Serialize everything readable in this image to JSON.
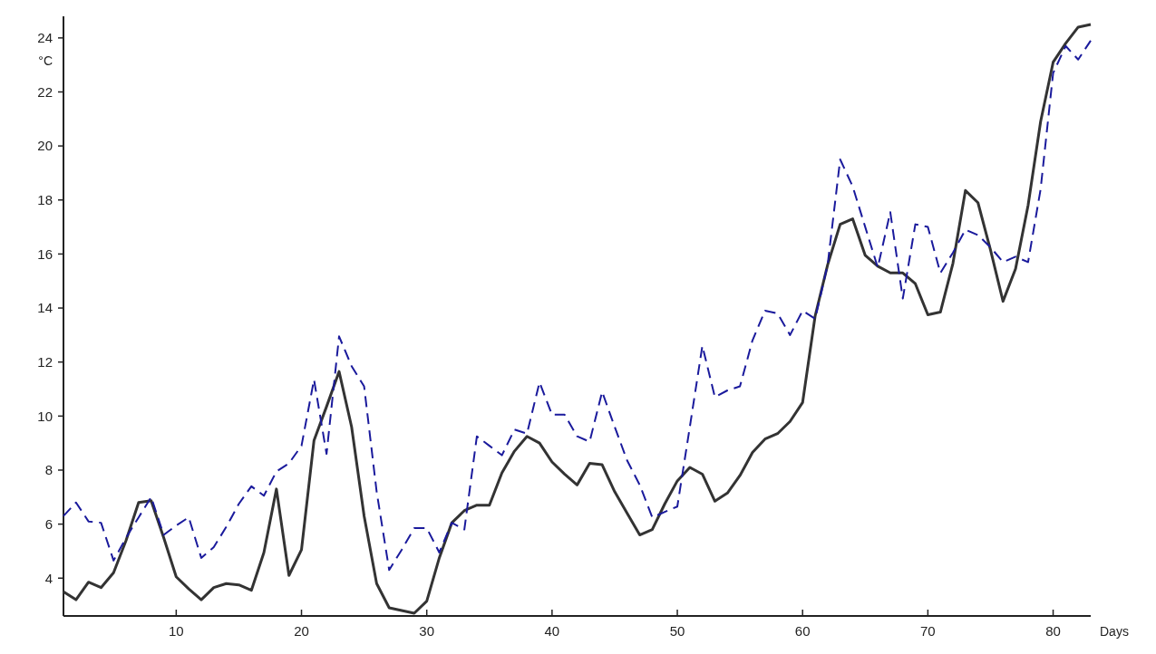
{
  "chart_data": {
    "type": "line",
    "xlabel": "Days",
    "ylabel": "°C",
    "x": [
      1,
      2,
      3,
      4,
      5,
      6,
      7,
      8,
      9,
      10,
      11,
      12,
      13,
      14,
      15,
      16,
      17,
      18,
      19,
      20,
      21,
      22,
      23,
      24,
      25,
      26,
      27,
      28,
      29,
      30,
      31,
      32,
      33,
      34,
      35,
      36,
      37,
      38,
      39,
      40,
      41,
      42,
      43,
      44,
      45,
      46,
      47,
      48,
      49,
      50,
      51,
      52,
      53,
      54,
      55,
      56,
      57,
      58,
      59,
      60,
      61,
      62,
      63,
      64,
      65,
      66,
      67,
      68,
      69,
      70,
      71,
      72,
      73,
      74,
      75,
      76,
      77,
      78,
      79,
      80,
      81,
      82,
      83
    ],
    "series": [
      {
        "color": "#333333",
        "line_style": "solid",
        "values": [
          3.5,
          3.2,
          3.85,
          3.65,
          4.2,
          5.4,
          6.8,
          6.87,
          5.5,
          4.05,
          3.6,
          3.2,
          3.65,
          3.8,
          3.75,
          3.55,
          4.95,
          7.3,
          4.1,
          5.05,
          9.1,
          10.35,
          11.65,
          9.6,
          6.3,
          3.8,
          2.9,
          2.8,
          2.7,
          3.15,
          4.75,
          6.05,
          6.5,
          6.7,
          6.7,
          7.9,
          8.7,
          9.25,
          9.0,
          8.3,
          7.85,
          7.45,
          8.25,
          8.2,
          7.2,
          6.4,
          5.6,
          5.8,
          6.75,
          7.6,
          8.1,
          7.85,
          6.85,
          7.15,
          7.8,
          8.65,
          9.15,
          9.35,
          9.8,
          10.5,
          13.7,
          15.6,
          17.1,
          17.3,
          15.95,
          15.55,
          15.3,
          15.3,
          14.9,
          13.75,
          13.85,
          15.65,
          18.35,
          17.9,
          16.15,
          14.25,
          15.45,
          17.8,
          20.9,
          23.1,
          23.8,
          24.4,
          24.5
        ]
      },
      {
        "color": "#1a1a9c",
        "line_style": "dashed",
        "values": [
          6.3,
          6.8,
          6.1,
          6.05,
          4.65,
          5.5,
          6.25,
          7.0,
          5.6,
          5.95,
          6.25,
          4.75,
          5.15,
          5.9,
          6.75,
          7.4,
          7.05,
          7.95,
          8.25,
          8.9,
          11.35,
          8.6,
          12.95,
          11.85,
          11.1,
          7.2,
          4.3,
          5.05,
          5.85,
          5.85,
          4.95,
          6.05,
          5.8,
          9.25,
          8.9,
          8.55,
          9.5,
          9.35,
          11.25,
          10.05,
          10.05,
          9.25,
          9.05,
          10.9,
          9.6,
          8.35,
          7.45,
          6.25,
          6.45,
          6.65,
          9.6,
          12.6,
          10.7,
          10.95,
          11.1,
          12.8,
          13.9,
          13.8,
          13.0,
          13.9,
          13.6,
          15.6,
          19.5,
          18.5,
          17.0,
          15.5,
          17.55,
          14.35,
          17.1,
          17.0,
          15.3,
          16.05,
          16.9,
          16.7,
          16.25,
          15.7,
          15.9,
          15.7,
          18.4,
          22.7,
          23.7,
          23.2,
          23.9
        ]
      }
    ],
    "xlim": [
      1,
      83
    ],
    "ylim": [
      2.6,
      24.8
    ],
    "xticks": [
      10,
      20,
      30,
      40,
      50,
      60,
      70,
      80
    ],
    "yticks": [
      4,
      6,
      8,
      10,
      12,
      14,
      16,
      18,
      20,
      22,
      24
    ]
  }
}
